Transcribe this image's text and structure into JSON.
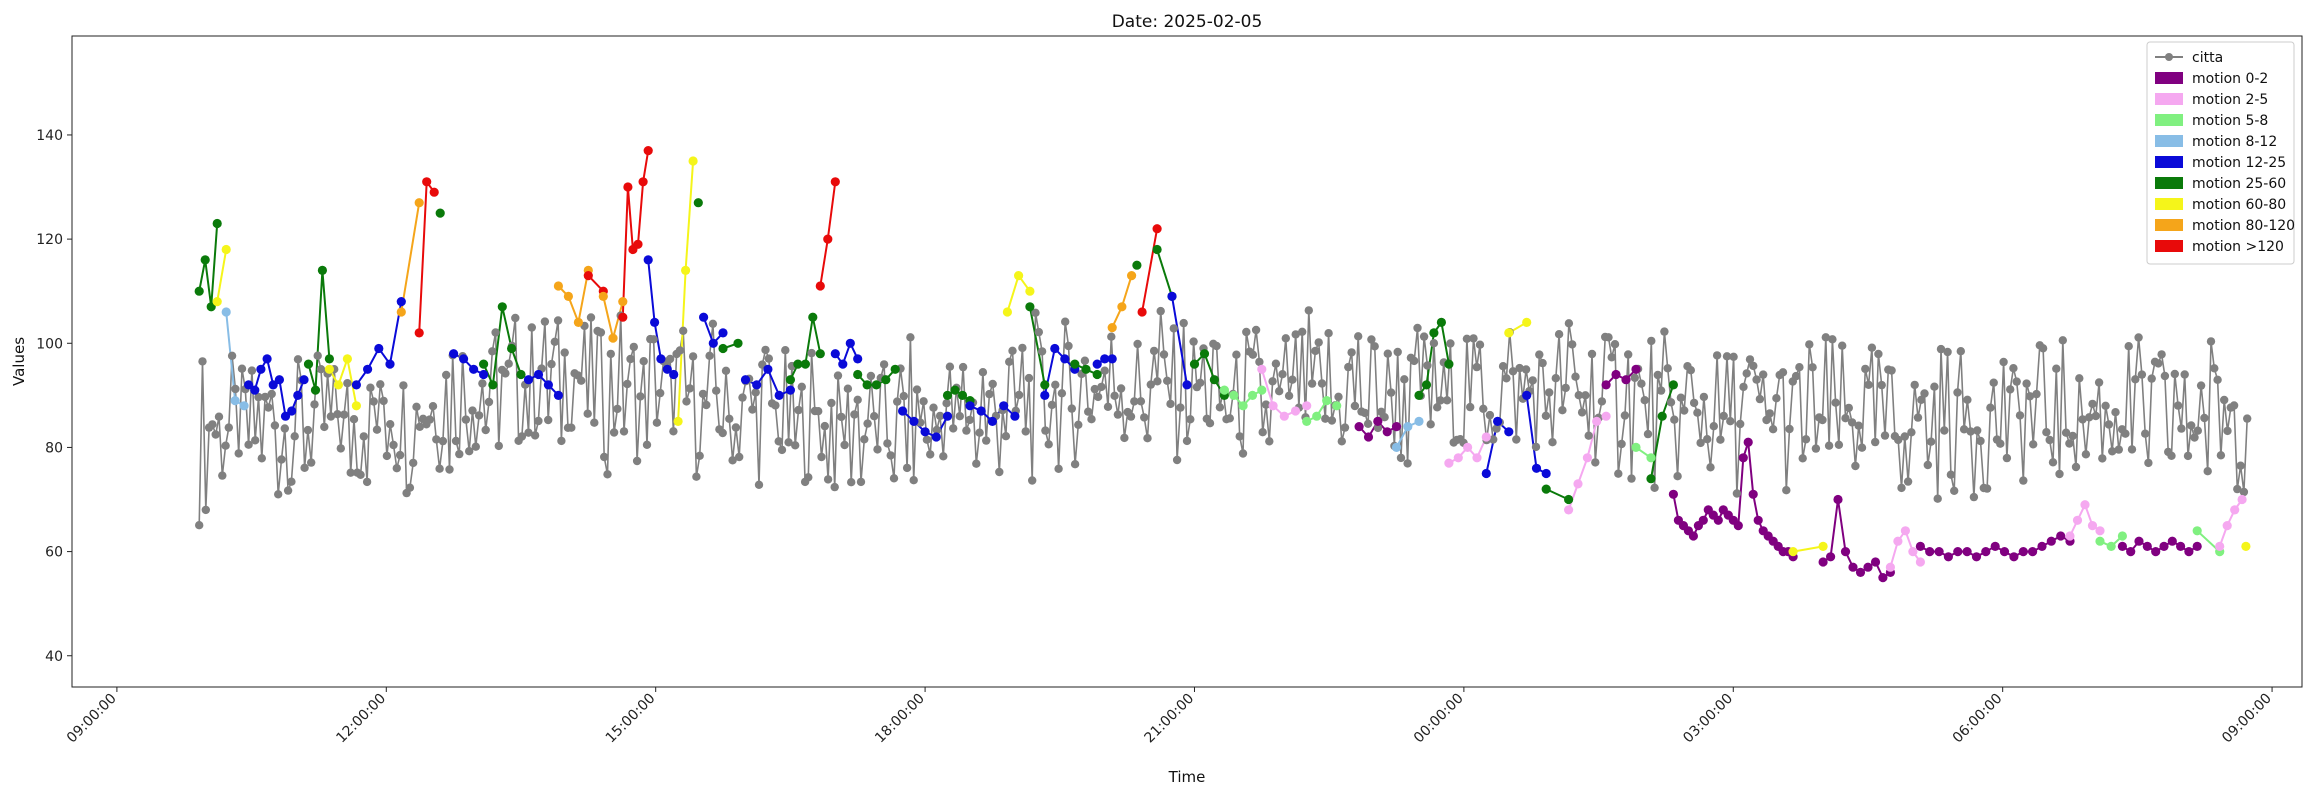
{
  "chart_data": {
    "type": "line",
    "title": "Date: 2025-02-05",
    "xlabel": "Time",
    "ylabel": "Values",
    "xlim": [
      "2025-02-05 08:30",
      "2025-02-06 09:20"
    ],
    "ylim": [
      34,
      159
    ],
    "x_ticks": [
      "09:00:00",
      "12:00:00",
      "15:00:00",
      "18:00:00",
      "21:00:00",
      "00:00:00",
      "03:00:00",
      "06:00:00",
      "09:00:00"
    ],
    "y_ticks": [
      40,
      60,
      80,
      100,
      120,
      140
    ],
    "grid": false,
    "legend_position": "top-right",
    "series": [
      {
        "name": "citta",
        "color": "#808080",
        "marker": "circle"
      }
    ],
    "motion_categories": [
      {
        "name": "motion 0-2",
        "color": "#800080"
      },
      {
        "name": "motion 2-5",
        "color": "#f5a8f0"
      },
      {
        "name": "motion 5-8",
        "color": "#80f080"
      },
      {
        "name": "motion 8-12",
        "color": "#88bde6"
      },
      {
        "name": "motion 12-25",
        "color": "#0a0ad8"
      },
      {
        "name": "motion 25-60",
        "color": "#0a7a0a"
      },
      {
        "name": "motion 60-80",
        "color": "#f5f51a"
      },
      {
        "name": "motion 80-120",
        "color": "#f5a51a"
      },
      {
        "name": "motion >120",
        "color": "#e80a0a"
      }
    ],
    "segments": [
      {
        "start": "09:55",
        "end": "10:07",
        "motion": "motion 25-60",
        "values": [
          110,
          116,
          107,
          123
        ]
      },
      {
        "start": "10:07",
        "end": "10:13",
        "motion": "motion 60-80",
        "values": [
          108,
          118
        ]
      },
      {
        "start": "10:13",
        "end": "10:25",
        "motion": "motion 8-12",
        "values": [
          106,
          89,
          88
        ]
      },
      {
        "start": "10:28",
        "end": "11:05",
        "motion": "motion 12-25",
        "values": [
          92,
          91,
          95,
          97,
          92,
          93,
          86,
          87,
          90,
          93
        ]
      },
      {
        "start": "11:08",
        "end": "11:22",
        "motion": "motion 25-60",
        "values": [
          96,
          91,
          114,
          97
        ]
      },
      {
        "start": "11:22",
        "end": "11:40",
        "motion": "motion 60-80",
        "values": [
          95,
          92,
          97,
          88
        ]
      },
      {
        "start": "11:40",
        "end": "12:10",
        "motion": "motion 12-25",
        "values": [
          92,
          95,
          99,
          96,
          108
        ]
      },
      {
        "start": "12:10",
        "end": "12:22",
        "motion": "motion 80-120",
        "values": [
          106,
          127
        ]
      },
      {
        "start": "12:22",
        "end": "12:32",
        "motion": "motion >120",
        "values": [
          102,
          131,
          129
        ]
      },
      {
        "start": "12:32",
        "end": "12:40",
        "motion": "motion 25-60",
        "values": [
          125
        ]
      },
      {
        "start": "12:45",
        "end": "13:05",
        "motion": "motion 12-25",
        "values": [
          98,
          97,
          95,
          94
        ]
      },
      {
        "start": "13:05",
        "end": "13:30",
        "motion": "motion 25-60",
        "values": [
          96,
          92,
          107,
          99,
          94
        ]
      },
      {
        "start": "13:35",
        "end": "13:55",
        "motion": "motion 12-25",
        "values": [
          93,
          94,
          92,
          90
        ]
      },
      {
        "start": "13:55",
        "end": "14:15",
        "motion": "motion 80-120",
        "values": [
          111,
          109,
          104,
          114
        ]
      },
      {
        "start": "14:15",
        "end": "14:25",
        "motion": "motion >120",
        "values": [
          113,
          110
        ]
      },
      {
        "start": "14:25",
        "end": "14:38",
        "motion": "motion 80-120",
        "values": [
          109,
          101,
          108
        ]
      },
      {
        "start": "14:38",
        "end": "14:55",
        "motion": "motion >120",
        "values": [
          105,
          130,
          118,
          119,
          131,
          137
        ]
      },
      {
        "start": "14:55",
        "end": "15:12",
        "motion": "motion 12-25",
        "values": [
          116,
          104,
          97,
          95,
          94
        ]
      },
      {
        "start": "15:15",
        "end": "15:25",
        "motion": "motion 60-80",
        "values": [
          85,
          114,
          135
        ]
      },
      {
        "start": "15:25",
        "end": "15:32",
        "motion": "motion 25-60",
        "values": [
          127
        ]
      },
      {
        "start": "15:32",
        "end": "15:45",
        "motion": "motion 12-25",
        "values": [
          105,
          100,
          102
        ]
      },
      {
        "start": "15:45",
        "end": "15:55",
        "motion": "motion 25-60",
        "values": [
          99,
          100
        ]
      },
      {
        "start": "16:00",
        "end": "16:30",
        "motion": "motion 12-25",
        "values": [
          93,
          92,
          95,
          90,
          91
        ]
      },
      {
        "start": "16:30",
        "end": "16:50",
        "motion": "motion 25-60",
        "values": [
          93,
          96,
          96,
          105,
          98
        ]
      },
      {
        "start": "16:50",
        "end": "17:00",
        "motion": "motion >120",
        "values": [
          111,
          120,
          131
        ]
      },
      {
        "start": "17:00",
        "end": "17:15",
        "motion": "motion 12-25",
        "values": [
          98,
          96,
          100,
          97
        ]
      },
      {
        "start": "17:15",
        "end": "17:40",
        "motion": "motion 25-60",
        "values": [
          94,
          92,
          92,
          93,
          95
        ]
      },
      {
        "start": "17:45",
        "end": "18:15",
        "motion": "motion 12-25",
        "values": [
          87,
          85,
          83,
          82,
          86
        ]
      },
      {
        "start": "18:15",
        "end": "18:30",
        "motion": "motion 25-60",
        "values": [
          90,
          91,
          90,
          89
        ]
      },
      {
        "start": "18:30",
        "end": "19:00",
        "motion": "motion 12-25",
        "values": [
          88,
          87,
          85,
          88,
          86
        ]
      },
      {
        "start": "18:55",
        "end": "19:10",
        "motion": "motion 60-80",
        "values": [
          106,
          113,
          110
        ]
      },
      {
        "start": "19:10",
        "end": "19:20",
        "motion": "motion 25-60",
        "values": [
          107,
          92
        ]
      },
      {
        "start": "19:20",
        "end": "19:40",
        "motion": "motion 12-25",
        "values": [
          90,
          99,
          97,
          95
        ]
      },
      {
        "start": "19:40",
        "end": "19:55",
        "motion": "motion 25-60",
        "values": [
          96,
          95,
          94
        ]
      },
      {
        "start": "19:55",
        "end": "20:05",
        "motion": "motion 12-25",
        "values": [
          96,
          97,
          97
        ]
      },
      {
        "start": "20:05",
        "end": "20:18",
        "motion": "motion 80-120",
        "values": [
          103,
          107,
          113
        ]
      },
      {
        "start": "20:18",
        "end": "20:25",
        "motion": "motion 25-60",
        "values": [
          115
        ]
      },
      {
        "start": "20:25",
        "end": "20:35",
        "motion": "motion >120",
        "values": [
          106,
          122
        ]
      },
      {
        "start": "20:35",
        "end": "20:45",
        "motion": "motion 25-60",
        "values": [
          118,
          109
        ]
      },
      {
        "start": "20:45",
        "end": "20:55",
        "motion": "motion 12-25",
        "values": [
          109,
          92
        ]
      },
      {
        "start": "21:00",
        "end": "21:20",
        "motion": "motion 25-60",
        "values": [
          96,
          98,
          93,
          90
        ]
      },
      {
        "start": "21:20",
        "end": "21:45",
        "motion": "motion 5-8",
        "values": [
          91,
          90,
          88,
          90,
          91
        ]
      },
      {
        "start": "21:45",
        "end": "22:15",
        "motion": "motion 2-5",
        "values": [
          95,
          88,
          86,
          87,
          88
        ]
      },
      {
        "start": "22:15",
        "end": "22:35",
        "motion": "motion 5-8",
        "values": [
          85,
          86,
          89,
          88
        ]
      },
      {
        "start": "22:50",
        "end": "23:15",
        "motion": "motion 0-2",
        "values": [
          84,
          82,
          85,
          83,
          84
        ]
      },
      {
        "start": "23:15",
        "end": "23:30",
        "motion": "motion 8-12",
        "values": [
          80,
          84,
          85
        ]
      },
      {
        "start": "23:30",
        "end": "23:50",
        "motion": "motion 25-60",
        "values": [
          90,
          92,
          102,
          104,
          96
        ]
      },
      {
        "start": "23:50",
        "end": "00:15",
        "motion": "motion 2-5",
        "values": [
          77,
          78,
          80,
          78,
          82
        ]
      },
      {
        "start": "00:15",
        "end": "00:30",
        "motion": "motion 12-25",
        "values": [
          75,
          85,
          83
        ]
      },
      {
        "start": "00:30",
        "end": "00:42",
        "motion": "motion 60-80",
        "values": [
          102,
          104
        ]
      },
      {
        "start": "00:42",
        "end": "00:55",
        "motion": "motion 12-25",
        "values": [
          90,
          76,
          75
        ]
      },
      {
        "start": "00:55",
        "end": "01:10",
        "motion": "motion 25-60",
        "values": [
          72,
          70
        ]
      },
      {
        "start": "01:10",
        "end": "01:35",
        "motion": "motion 2-5",
        "values": [
          68,
          73,
          78,
          85,
          86
        ]
      },
      {
        "start": "01:35",
        "end": "01:55",
        "motion": "motion 0-2",
        "values": [
          92,
          94,
          93,
          95
        ]
      },
      {
        "start": "01:55",
        "end": "02:05",
        "motion": "motion 5-8",
        "values": [
          80,
          78
        ]
      },
      {
        "start": "02:05",
        "end": "02:20",
        "motion": "motion 25-60",
        "values": [
          74,
          86,
          92
        ]
      },
      {
        "start": "02:20",
        "end": "03:40",
        "motion": "motion 0-2",
        "values": [
          71,
          66,
          65,
          64,
          63,
          65,
          66,
          68,
          67,
          66,
          68,
          67,
          66,
          65,
          78,
          81,
          71,
          66,
          64,
          63,
          62,
          61,
          60,
          60,
          59
        ]
      },
      {
        "start": "03:40",
        "end": "04:00",
        "motion": "motion 60-80",
        "values": [
          60,
          61
        ]
      },
      {
        "start": "04:00",
        "end": "04:45",
        "motion": "motion 0-2",
        "values": [
          58,
          59,
          70,
          60,
          57,
          56,
          57,
          58,
          55,
          56
        ]
      },
      {
        "start": "04:45",
        "end": "05:05",
        "motion": "motion 2-5",
        "values": [
          57,
          62,
          64,
          60,
          58
        ]
      },
      {
        "start": "05:05",
        "end": "06:45",
        "motion": "motion 0-2",
        "values": [
          61,
          60,
          60,
          59,
          60,
          60,
          59,
          60,
          61,
          60,
          59,
          60,
          60,
          61,
          62,
          63,
          62
        ]
      },
      {
        "start": "06:45",
        "end": "07:05",
        "motion": "motion 2-5",
        "values": [
          63,
          66,
          69,
          65,
          64
        ]
      },
      {
        "start": "07:05",
        "end": "07:20",
        "motion": "motion 5-8",
        "values": [
          62,
          61,
          63
        ]
      },
      {
        "start": "07:20",
        "end": "08:10",
        "motion": "motion 0-2",
        "values": [
          61,
          60,
          62,
          61,
          60,
          61,
          62,
          61,
          60,
          61
        ]
      },
      {
        "start": "08:10",
        "end": "08:25",
        "motion": "motion 5-8",
        "values": [
          64,
          60
        ]
      },
      {
        "start": "08:25",
        "end": "08:40",
        "motion": "motion 2-5",
        "values": [
          61,
          65,
          68,
          70
        ]
      },
      {
        "start": "08:40",
        "end": "08:45",
        "motion": "motion 60-80",
        "values": [
          61
        ]
      }
    ]
  }
}
